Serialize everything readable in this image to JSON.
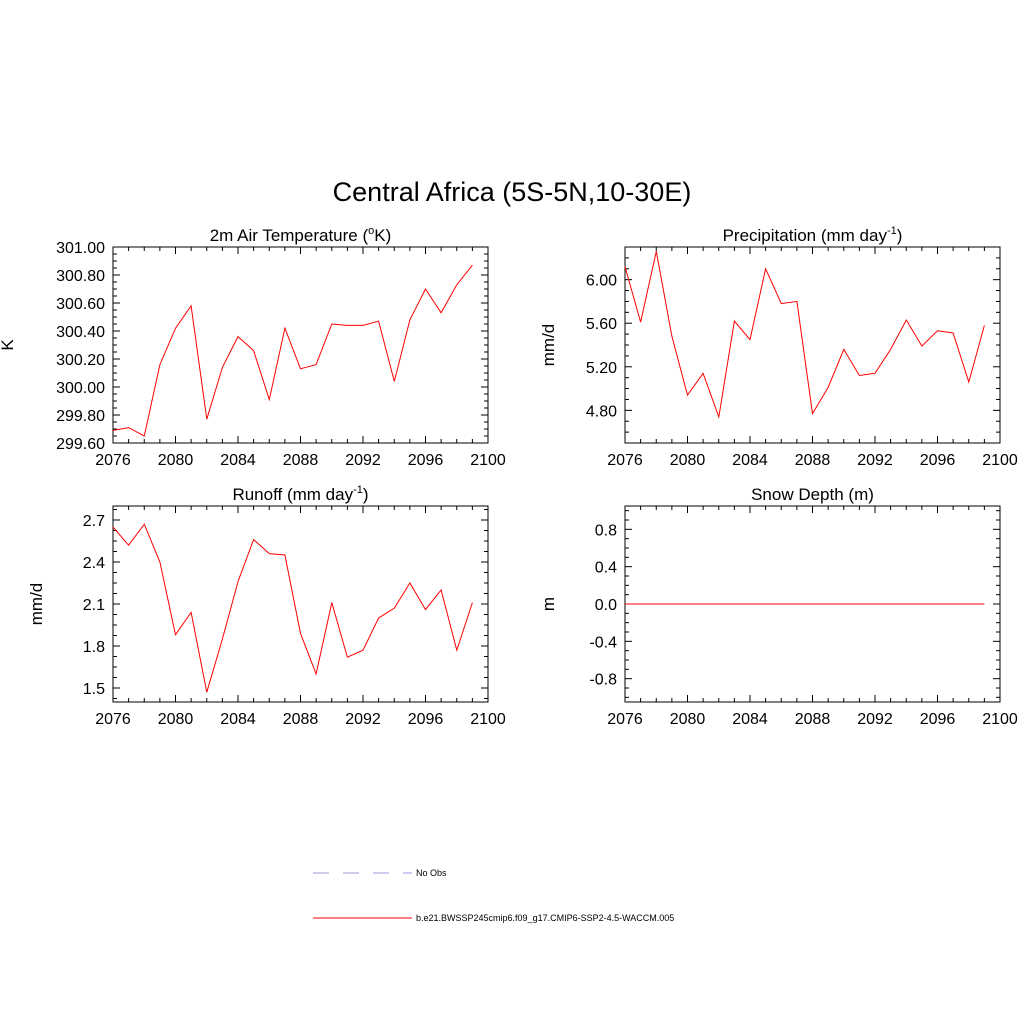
{
  "title": "Central Africa (5S-5N,10-30E)",
  "colors": {
    "model": "#ff0000",
    "obs": "#9999dd",
    "axis": "#000000"
  },
  "legend": [
    {
      "label": "No Obs",
      "style": "dashed",
      "color": "#9999dd"
    },
    {
      "label": "b.e21.BWSSP245cmip6.f09_g17.CMIP6-SSP2-4.5-WACCM.005",
      "style": "solid",
      "color": "#ff0000"
    }
  ],
  "chart_data": [
    {
      "type": "line",
      "title_main": "2m Air Temperature (",
      "title_sup": "o",
      "title_end": "K)",
      "ylabel": "K",
      "xlim": [
        2076,
        2100
      ],
      "ylim": [
        299.6,
        301.0
      ],
      "xticks": [
        "2076",
        "2080",
        "2084",
        "2088",
        "2092",
        "2096",
        "2100"
      ],
      "yticks": [
        "299.60",
        "299.80",
        "300.00",
        "300.20",
        "300.40",
        "300.60",
        "300.80",
        "301.00"
      ],
      "x": [
        2076,
        2077,
        2078,
        2079,
        2080,
        2081,
        2082,
        2083,
        2084,
        2085,
        2086,
        2087,
        2088,
        2089,
        2090,
        2091,
        2092,
        2093,
        2094,
        2095,
        2096,
        2097,
        2098,
        2099
      ],
      "series": [
        {
          "values": [
            299.69,
            299.71,
            299.65,
            300.16,
            300.42,
            300.58,
            299.77,
            300.14,
            300.36,
            300.26,
            299.91,
            300.42,
            300.13,
            300.16,
            300.45,
            300.44,
            300.44,
            300.47,
            300.04,
            300.48,
            300.7,
            300.53,
            300.73,
            300.87
          ]
        }
      ]
    },
    {
      "type": "line",
      "title_main": "Precipitation (mm day",
      "title_sup": "-1",
      "title_end": ")",
      "ylabel": "mm/d",
      "xlim": [
        2076,
        2100
      ],
      "ylim": [
        4.5,
        6.3
      ],
      "xticks": [
        "2076",
        "2080",
        "2084",
        "2088",
        "2092",
        "2096",
        "2100"
      ],
      "yticks": [
        "4.80",
        "5.20",
        "5.60",
        "6.00"
      ],
      "x": [
        2076,
        2077,
        2078,
        2079,
        2080,
        2081,
        2082,
        2083,
        2084,
        2085,
        2086,
        2087,
        2088,
        2089,
        2090,
        2091,
        2092,
        2093,
        2094,
        2095,
        2096,
        2097,
        2098,
        2099
      ],
      "series": [
        {
          "values": [
            6.12,
            5.61,
            6.26,
            5.48,
            4.94,
            5.14,
            4.74,
            5.62,
            5.45,
            6.1,
            5.78,
            5.8,
            4.77,
            5.01,
            5.36,
            5.12,
            5.14,
            5.36,
            5.63,
            5.39,
            5.53,
            5.51,
            5.06,
            5.58
          ]
        }
      ]
    },
    {
      "type": "line",
      "title_main": "Runoff (mm day",
      "title_sup": "-1",
      "title_end": ")",
      "ylabel": "mm/d",
      "xlim": [
        2076,
        2100
      ],
      "ylim": [
        1.4,
        2.8
      ],
      "xticks": [
        "2076",
        "2080",
        "2084",
        "2088",
        "2092",
        "2096",
        "2100"
      ],
      "yticks": [
        "1.5",
        "1.8",
        "2.1",
        "2.4",
        "2.7"
      ],
      "x": [
        2076,
        2077,
        2078,
        2079,
        2080,
        2081,
        2082,
        2083,
        2084,
        2085,
        2086,
        2087,
        2088,
        2089,
        2090,
        2091,
        2092,
        2093,
        2094,
        2095,
        2096,
        2097,
        2098,
        2099
      ],
      "series": [
        {
          "values": [
            2.65,
            2.52,
            2.67,
            2.4,
            1.88,
            2.04,
            1.47,
            1.85,
            2.26,
            2.56,
            2.46,
            2.45,
            1.89,
            1.6,
            2.11,
            1.72,
            1.77,
            2.0,
            2.07,
            2.25,
            2.06,
            2.2,
            1.77,
            2.11
          ]
        }
      ]
    },
    {
      "type": "line",
      "title_main": "Snow Depth (m)",
      "title_sup": "",
      "title_end": "",
      "ylabel": "m",
      "xlim": [
        2076,
        2100
      ],
      "ylim": [
        -1.05,
        1.05
      ],
      "xticks": [
        "2076",
        "2080",
        "2084",
        "2088",
        "2092",
        "2096",
        "2100"
      ],
      "yticks": [
        "-0.8",
        "-0.4",
        "0.0",
        "0.4",
        "0.8"
      ],
      "x": [
        2076,
        2077,
        2078,
        2079,
        2080,
        2081,
        2082,
        2083,
        2084,
        2085,
        2086,
        2087,
        2088,
        2089,
        2090,
        2091,
        2092,
        2093,
        2094,
        2095,
        2096,
        2097,
        2098,
        2099
      ],
      "series": [
        {
          "values": [
            0,
            0,
            0,
            0,
            0,
            0,
            0,
            0,
            0,
            0,
            0,
            0,
            0,
            0,
            0,
            0,
            0,
            0,
            0,
            0,
            0,
            0,
            0,
            0
          ]
        }
      ]
    }
  ]
}
